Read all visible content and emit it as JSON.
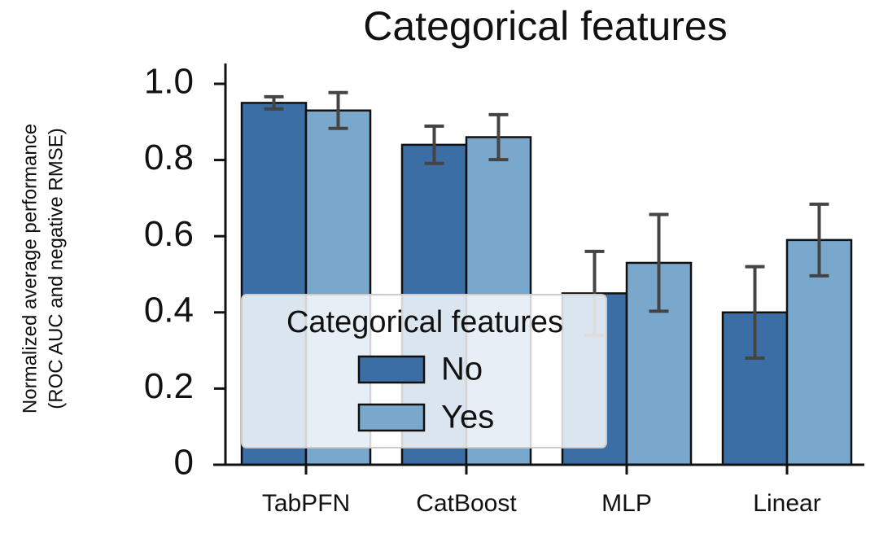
{
  "chart_data": {
    "type": "bar",
    "title": "Categorical features",
    "ylabel": [
      "Normalized average performance",
      "(ROC AUC and negative RMSE)"
    ],
    "categories": [
      "TabPFN",
      "CatBoost",
      "MLP",
      "Linear"
    ],
    "legend_title": "Categorical features",
    "series": [
      {
        "name": "No",
        "color": "#3a6ea5",
        "values": [
          0.95,
          0.84,
          0.45,
          0.4
        ],
        "errors": [
          0.016,
          0.049,
          0.11,
          0.12
        ]
      },
      {
        "name": "Yes",
        "color": "#7aa8cc",
        "values": [
          0.93,
          0.86,
          0.53,
          0.59
        ],
        "errors": [
          0.047,
          0.059,
          0.127,
          0.094
        ]
      }
    ],
    "ylim": [
      0,
      1
    ],
    "yticks": [
      0,
      0.2,
      0.4,
      0.6,
      0.8,
      {
        "value": 1,
        "label": "1.0"
      }
    ],
    "grid": false
  }
}
